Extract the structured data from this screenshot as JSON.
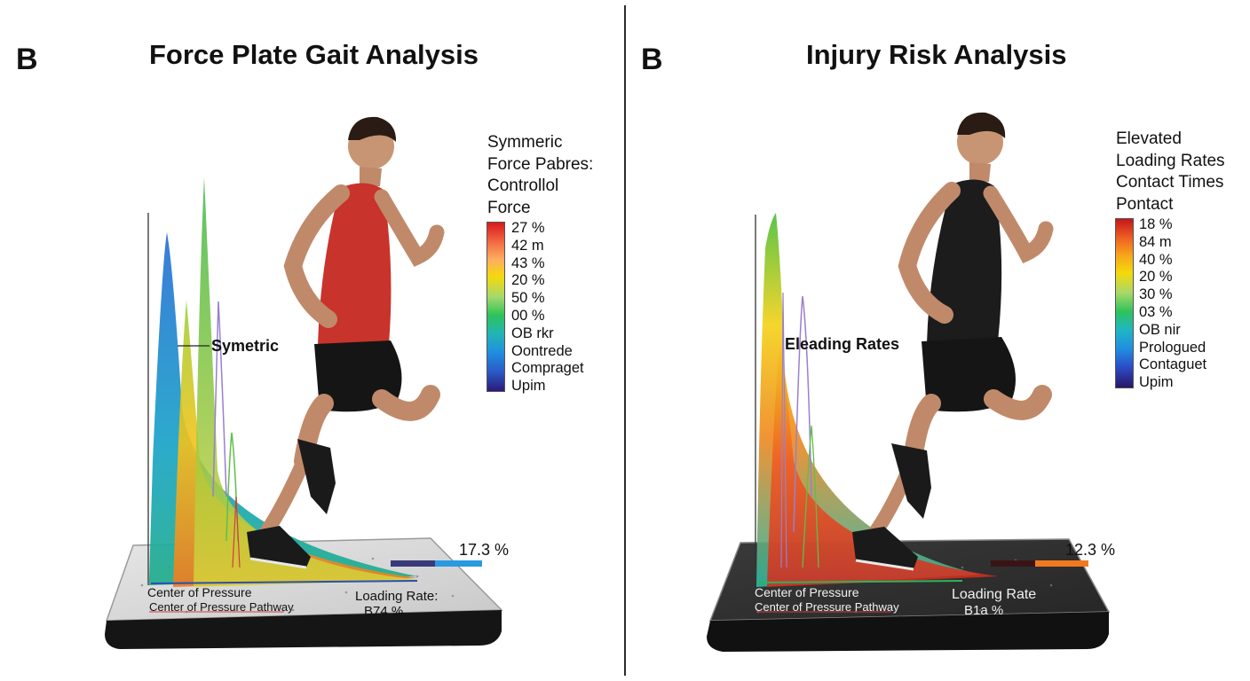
{
  "left": {
    "label": "B",
    "title": "Force Plate Gait Analysis",
    "legend_lines": [
      "Symmeric",
      "Force Pabres:",
      "Controllol",
      "Force"
    ],
    "ticks": [
      "27 %",
      "42 m",
      "43 %",
      "20 %",
      "50 %",
      "00 %",
      "OB rkr",
      "Oontrede",
      "Compraget",
      "Upim"
    ],
    "callout": "Symetric",
    "cop_label": "Center of Pressure",
    "cop_pathway": "Center of Pressure Pathway",
    "loading_label": "Loading Rate:",
    "loading_value": "B74 %",
    "bar_value": "17.3 %",
    "shirt_color": "#c8332b",
    "plate_color": "#dcdcdc"
  },
  "right": {
    "label": "B",
    "title": "Injury Risk Analysis",
    "legend_lines": [
      "Elevated",
      "Loading Rates",
      "Contact Times",
      "Pontact"
    ],
    "ticks": [
      "18 %",
      "84 m",
      "40 %",
      "20 %",
      "30 %",
      "03 %",
      "OB nir",
      "Prologued",
      "Contaguet",
      "Upim"
    ],
    "callout": "Eleading Rates",
    "cop_label": "Center of Pressure",
    "cop_pathway": "Center of Pressure Pathway",
    "loading_label": "Loading Rate",
    "loading_value": "B1a %",
    "bar_value": "12.3 %",
    "shirt_color": "#1c1c1c",
    "plate_color": "#2e2e2e"
  }
}
